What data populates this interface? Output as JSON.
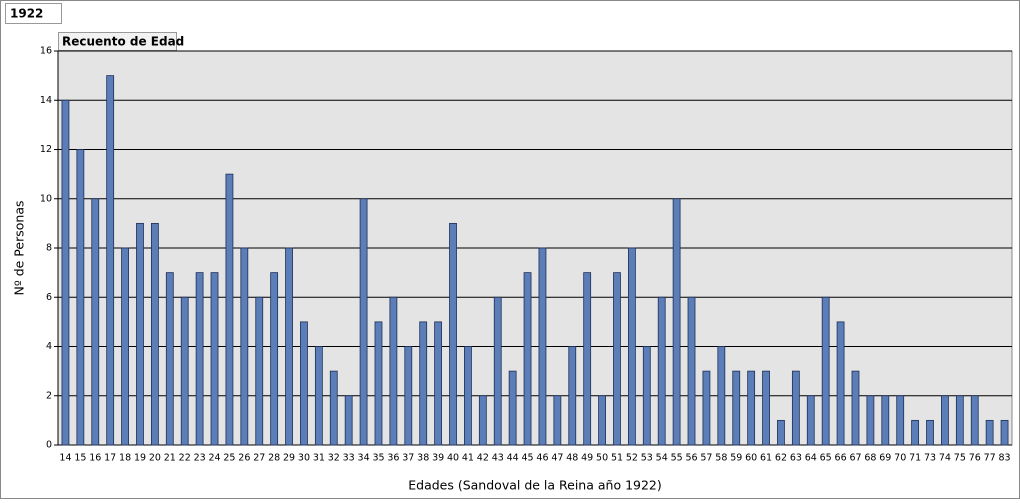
{
  "chart_data": {
    "type": "bar",
    "filter": "1922",
    "field_button": "Recuento de Edad",
    "x_label": "Edades (Sandoval de la Reina año 1922)",
    "y_label": "Nº de Personas",
    "categories": [
      "14",
      "15",
      "16",
      "17",
      "18",
      "19",
      "20",
      "21",
      "22",
      "23",
      "24",
      "25",
      "26",
      "27",
      "28",
      "29",
      "30",
      "31",
      "32",
      "33",
      "34",
      "35",
      "36",
      "37",
      "38",
      "39",
      "40",
      "41",
      "42",
      "43",
      "44",
      "45",
      "46",
      "47",
      "48",
      "49",
      "50",
      "51",
      "52",
      "53",
      "54",
      "55",
      "56",
      "57",
      "58",
      "59",
      "60",
      "61",
      "62",
      "63",
      "64",
      "65",
      "66",
      "67",
      "68",
      "69",
      "70",
      "71",
      "73",
      "74",
      "75",
      "76",
      "77",
      "83"
    ],
    "values": [
      14,
      12,
      10,
      15,
      8,
      9,
      9,
      7,
      6,
      7,
      7,
      11,
      8,
      6,
      7,
      8,
      5,
      4,
      3,
      2,
      10,
      5,
      6,
      4,
      5,
      5,
      9,
      4,
      2,
      6,
      3,
      7,
      8,
      2,
      4,
      7,
      2,
      7,
      8,
      4,
      6,
      10,
      6,
      3,
      4,
      3,
      3,
      3,
      1,
      3,
      2,
      6,
      5,
      3,
      2,
      2,
      2,
      1,
      1,
      2,
      2,
      2,
      1,
      1
    ],
    "color": "#5b7db8",
    "ylim": [
      0,
      16
    ],
    "yticks": [
      0,
      2,
      4,
      6,
      8,
      10,
      12,
      14,
      16
    ],
    "grid": true
  }
}
